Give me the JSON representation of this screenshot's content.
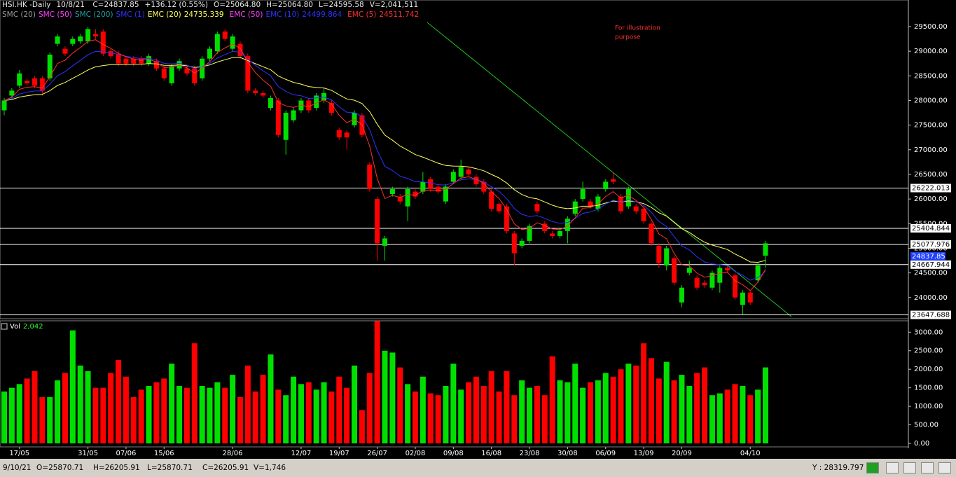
{
  "header": {
    "symbol": "HSI.HK -Daily",
    "date": "10/8/21",
    "items": [
      "C=24837.85",
      "+136.12 (0.55%)",
      "O=25064.80",
      "H=25064.80",
      "L=24595.58",
      "V=2,041,511"
    ]
  },
  "indicators": [
    {
      "name": "SMC (20)",
      "color": "#9a9a9a"
    },
    {
      "name": "SMC (50)",
      "color": "#ff40ff"
    },
    {
      "name": "SMC (200)",
      "color": "#20a0a0"
    },
    {
      "name": "SMC (1)",
      "color": "#3030ff"
    },
    {
      "name": "EMC (20)",
      "color": "#ffff60",
      "value": "24735.339",
      "period": 20
    },
    {
      "name": "EMC (50)",
      "color": "#ff40ff"
    },
    {
      "name": "EMC (10)",
      "color": "#3030ff",
      "value": "24499.864",
      "period": 10
    },
    {
      "name": "EMC (5)",
      "color": "#ff3030",
      "value": "24511.742",
      "period": 5
    }
  ],
  "annotation": [
    "For illustration",
    "purpose"
  ],
  "volume_label": "Vol",
  "volume_value": "2,042",
  "status_bar": {
    "items": [
      "9/10/21",
      "O=25870.71",
      "H=26205.91",
      "L=25870.71",
      "C=26205.91",
      "V=1,746"
    ],
    "cursor": "Y : 28319.797"
  },
  "chart_data": {
    "type": "candlestick",
    "up_color": "#00e000",
    "down_color": "#ff0000",
    "categories": [
      null,
      null,
      "17/05",
      null,
      null,
      null,
      null,
      null,
      null,
      null,
      null,
      "31/05",
      null,
      null,
      null,
      null,
      "07/06",
      null,
      null,
      null,
      null,
      "15/06",
      null,
      null,
      null,
      null,
      null,
      null,
      null,
      null,
      "28/06",
      null,
      null,
      null,
      null,
      null,
      null,
      null,
      null,
      "12/07",
      null,
      null,
      null,
      null,
      "19/07",
      null,
      null,
      null,
      null,
      "26/07",
      null,
      null,
      null,
      null,
      "02/08",
      null,
      null,
      null,
      null,
      "09/08",
      null,
      null,
      null,
      null,
      "16/08",
      null,
      null,
      null,
      null,
      "23/08",
      null,
      null,
      null,
      null,
      "30/08",
      null,
      null,
      null,
      null,
      "06/09",
      null,
      null,
      null,
      null,
      "13/09",
      null,
      null,
      null,
      null,
      "20/09",
      null,
      null,
      null,
      null,
      null,
      null,
      null,
      null,
      "04/10",
      null,
      null
    ],
    "open": [
      27800,
      28100,
      28300,
      28400,
      28450,
      28450,
      28450,
      29150,
      29050,
      29150,
      29200,
      29200,
      29350,
      29400,
      29000,
      28950,
      28850,
      28850,
      28850,
      28750,
      28800,
      28650,
      28350,
      28650,
      28650,
      28650,
      28450,
      28850,
      29000,
      29400,
      29050,
      29150,
      28900,
      28200,
      28150,
      27850,
      28000,
      27200,
      27600,
      27800,
      28000,
      27850,
      28000,
      27950,
      27400,
      27350,
      27500,
      27700,
      26700,
      26000,
      25050,
      26100,
      26050,
      25850,
      26150,
      26150,
      26400,
      26250,
      25950,
      26350,
      26450,
      26600,
      26450,
      26350,
      26150,
      25900,
      25850,
      25300,
      25050,
      25150,
      25900,
      25500,
      25300,
      25250,
      25350,
      25700,
      26000,
      25950,
      25800,
      26200,
      26400,
      26050,
      25850,
      25850,
      25800,
      25500,
      25050,
      24650,
      24800,
      23900,
      24500,
      24400,
      24300,
      24200,
      24300,
      24600,
      24450,
      23850,
      24100,
      24350,
      24850
    ],
    "high": [
      28050,
      28250,
      28620,
      28450,
      28500,
      28500,
      28980,
      29350,
      29100,
      29300,
      29350,
      29500,
      29450,
      29450,
      29050,
      29000,
      28900,
      28900,
      28900,
      28950,
      28850,
      28700,
      28750,
      28850,
      28700,
      28700,
      28900,
      29100,
      29400,
      29450,
      29350,
      29200,
      28950,
      28250,
      28200,
      28100,
      28050,
      27800,
      27850,
      28050,
      28050,
      28150,
      28250,
      28000,
      27450,
      27400,
      27800,
      27750,
      26750,
      26050,
      25250,
      26250,
      26100,
      26250,
      26200,
      26550,
      26450,
      26300,
      26300,
      26600,
      26800,
      26650,
      26500,
      26400,
      26200,
      25950,
      25900,
      25350,
      25200,
      25500,
      25950,
      25550,
      25350,
      25400,
      25650,
      26000,
      26350,
      26000,
      26100,
      26400,
      26550,
      26100,
      26250,
      25900,
      25850,
      25550,
      25100,
      25050,
      24850,
      24250,
      24750,
      24450,
      24350,
      24550,
      24650,
      24650,
      24500,
      24150,
      24150,
      24700,
      25150
    ],
    "low": [
      27700,
      28050,
      28250,
      28300,
      28250,
      28100,
      28400,
      29100,
      28900,
      29100,
      29150,
      29150,
      29250,
      28900,
      28850,
      28700,
      28700,
      28700,
      28700,
      28700,
      28600,
      28400,
      28300,
      28600,
      28500,
      28300,
      28400,
      28800,
      28950,
      29200,
      29000,
      28850,
      28150,
      28100,
      28050,
      27800,
      27250,
      26900,
      27550,
      27750,
      27750,
      27800,
      27950,
      27700,
      27200,
      27000,
      27450,
      27250,
      26150,
      24750,
      24750,
      26050,
      25900,
      25550,
      26000,
      26100,
      26150,
      26100,
      25900,
      26300,
      26400,
      26450,
      26250,
      26100,
      25750,
      25700,
      25300,
      24650,
      25000,
      25100,
      25700,
      25300,
      25200,
      25200,
      25100,
      25650,
      25950,
      25800,
      25750,
      26150,
      26300,
      25700,
      25800,
      25700,
      25500,
      25050,
      24600,
      24550,
      24250,
      23800,
      24450,
      24150,
      24200,
      24150,
      24100,
      24500,
      23950,
      23650,
      23850,
      24300,
      24600
    ],
    "close": [
      28000,
      28200,
      28550,
      28350,
      28300,
      28200,
      28930,
      29300,
      28950,
      29250,
      29300,
      29450,
      29300,
      28950,
      28900,
      28750,
      28750,
      28750,
      28750,
      28900,
      28650,
      28450,
      28700,
      28800,
      28550,
      28350,
      28850,
      29050,
      29350,
      29250,
      29300,
      28900,
      28200,
      28150,
      28100,
      28050,
      27300,
      27750,
      27800,
      28000,
      27800,
      28100,
      28150,
      27750,
      27250,
      27250,
      27750,
      27300,
      26200,
      25100,
      25200,
      26200,
      25950,
      26200,
      26050,
      26350,
      26200,
      26150,
      26250,
      26550,
      26650,
      26500,
      26300,
      26150,
      25800,
      25750,
      25350,
      24900,
      25150,
      25450,
      25750,
      25350,
      25250,
      25350,
      25600,
      25950,
      26200,
      25850,
      26050,
      26350,
      26350,
      25750,
      26200,
      25750,
      25550,
      25100,
      24700,
      25000,
      24300,
      24200,
      24600,
      24200,
      24250,
      24500,
      24600,
      24550,
      24000,
      24100,
      23900,
      24650,
      25100
    ],
    "volume": [
      1400,
      1500,
      1600,
      1750,
      1950,
      1250,
      1250,
      1700,
      1900,
      3050,
      2100,
      1950,
      1500,
      1500,
      1900,
      2250,
      1800,
      1250,
      1450,
      1550,
      1650,
      1750,
      2150,
      1550,
      1500,
      2700,
      1550,
      1500,
      1650,
      1500,
      1850,
      1250,
      2100,
      1400,
      1850,
      2400,
      1450,
      1300,
      1800,
      1600,
      1650,
      1450,
      1650,
      1400,
      1800,
      1500,
      2100,
      900,
      1900,
      3300,
      2500,
      2450,
      2050,
      1600,
      1400,
      1800,
      1350,
      1300,
      1550,
      2150,
      1450,
      1650,
      1800,
      1550,
      1950,
      1400,
      1950,
      1300,
      1700,
      1500,
      1550,
      1300,
      2350,
      1700,
      1650,
      2150,
      1500,
      1650,
      1700,
      1900,
      1800,
      2000,
      2150,
      2100,
      2700,
      2300,
      1750,
      2200,
      1700,
      1850,
      1550,
      1900,
      2050,
      1300,
      1350,
      1450,
      1600,
      1550,
      1300,
      1450,
      2050
    ],
    "ylim": [
      23570,
      30040
    ],
    "yticks": [
      {
        "value": 24000,
        "label": "24000.00"
      },
      {
        "value": 24500,
        "label": "24500.00"
      },
      {
        "value": 25000,
        "label": "25000.00"
      },
      {
        "value": 25500,
        "label": "25500.00"
      },
      {
        "value": 26000,
        "label": "26000.00"
      },
      {
        "value": 26500,
        "label": "26500.00"
      },
      {
        "value": 27000,
        "label": "27000.00"
      },
      {
        "value": 27500,
        "label": "27500.00"
      },
      {
        "value": 28000,
        "label": "28000.00"
      },
      {
        "value": 28500,
        "label": "28500.00"
      },
      {
        "value": 29000,
        "label": "29000.00"
      },
      {
        "value": 29500,
        "label": "29500.00"
      }
    ],
    "volume_ylim": [
      0,
      3270
    ],
    "volume_yticks": [
      {
        "value": 0,
        "label": "0.00"
      },
      {
        "value": 500,
        "label": "500.00"
      },
      {
        "value": 1000,
        "label": "1000.00"
      },
      {
        "value": 1500,
        "label": "1500.00"
      },
      {
        "value": 2000,
        "label": "2000.00"
      },
      {
        "value": 2500,
        "label": "2500.00"
      },
      {
        "value": 3000,
        "label": "3000.00"
      }
    ],
    "hlines": [
      26222.013,
      25404.844,
      25077.976,
      24667.944,
      23647.688
    ],
    "last_price": 24837.85
  }
}
